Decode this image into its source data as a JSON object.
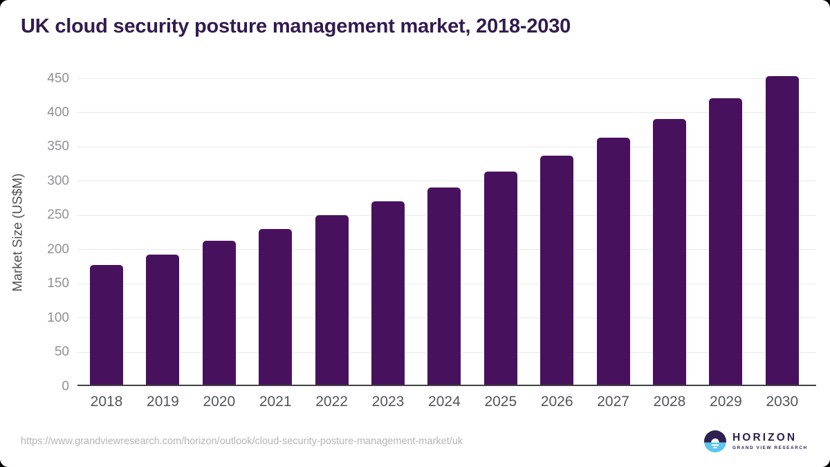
{
  "title": "UK cloud security posture management market, 2018-2030",
  "source_url": "https://www.grandviewresearch.com/horizon/outlook/cloud-security-posture-management-market/uk",
  "logo": {
    "name": "HORIZON",
    "subtitle": "GRAND VIEW RESEARCH",
    "icon": "sunrise-horizon-icon",
    "purple": "#2e2051",
    "blue": "#5ec6ee"
  },
  "colors": {
    "bar": "#48115e",
    "title_text": "#321b4e",
    "axis_line": "#3f4041",
    "gridline": "#e9e9eb",
    "y_tick_text": "#8f9093",
    "x_tick_text": "#545559",
    "y_axis_title_text": "#515254",
    "source_url_text": "#b4b5b7"
  },
  "chart_data": {
    "type": "bar",
    "title": "UK cloud security posture management market, 2018-2030",
    "xlabel": "",
    "ylabel": "Market Size (US$M)",
    "categories": [
      "2018",
      "2019",
      "2020",
      "2021",
      "2022",
      "2023",
      "2024",
      "2025",
      "2026",
      "2027",
      "2028",
      "2029",
      "2030"
    ],
    "values": [
      177,
      192,
      212,
      230,
      250,
      270,
      290,
      313,
      337,
      363,
      390,
      421,
      453
    ],
    "ylim": [
      0,
      450
    ],
    "y_ticks": [
      0,
      50,
      100,
      150,
      200,
      250,
      300,
      350,
      400,
      450
    ],
    "grid": "horizontal",
    "legend": "none",
    "bar_color": "#48115e"
  }
}
